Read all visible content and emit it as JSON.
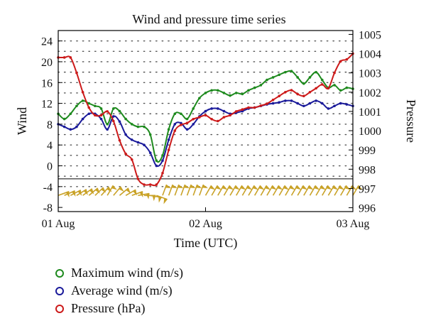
{
  "chart_data": {
    "type": "line",
    "title": "Wind and pressure time series",
    "xlabel": "Time (UTC)",
    "ylabel_left": "Wind",
    "ylabel_right": "Pressure",
    "x_ticks": [
      "01 Aug",
      "02 Aug",
      "03 Aug"
    ],
    "y_ticks_left": [
      "24",
      "20",
      "16",
      "12",
      "8",
      "4",
      "0",
      "-4",
      "-8"
    ],
    "y_ticks_right": [
      "1005",
      "1004",
      "1003",
      "1002",
      "1001",
      "1000",
      "999",
      "998",
      "997",
      "996"
    ],
    "xlim_hours": [
      0,
      48
    ],
    "ylim_left": [
      -8.8,
      26
    ],
    "ylim_right": [
      995.8,
      1005.2
    ],
    "grid": "dotted",
    "series": [
      {
        "name": "Maximum wind (m/s)",
        "axis": "left",
        "color": "#1e8a1e",
        "x_hours": [
          0,
          1,
          2,
          3,
          4,
          5,
          6,
          7,
          8,
          9,
          10,
          11,
          12,
          13,
          14,
          15,
          16,
          17,
          18,
          19,
          20,
          21,
          22,
          23,
          24,
          25,
          26,
          27,
          28,
          29,
          30,
          31,
          32,
          33,
          34,
          35,
          36,
          37,
          38,
          39,
          40,
          41,
          42,
          43,
          44,
          45,
          46,
          47,
          48
        ],
        "values": [
          10,
          9,
          10,
          11.5,
          12.5,
          12,
          11.5,
          11,
          8,
          11,
          10.5,
          9,
          8,
          7.5,
          7.5,
          6,
          1,
          2,
          7,
          10,
          10,
          9,
          11,
          13,
          14,
          14.5,
          14.5,
          14,
          13.5,
          14,
          13.8,
          14.5,
          15,
          15.5,
          16.5,
          17,
          17.5,
          18,
          18.2,
          17,
          15.8,
          17,
          18,
          16.5,
          15,
          15.5,
          14.5,
          15,
          14.8
        ]
      },
      {
        "name": "Average wind (m/s)",
        "axis": "left",
        "color": "#1a1a9a",
        "x_hours": [
          0,
          1,
          2,
          3,
          4,
          5,
          6,
          7,
          8,
          9,
          10,
          11,
          12,
          13,
          14,
          15,
          16,
          17,
          18,
          19,
          20,
          21,
          22,
          23,
          24,
          25,
          26,
          27,
          28,
          29,
          30,
          31,
          32,
          33,
          34,
          35,
          36,
          37,
          38,
          39,
          40,
          41,
          42,
          43,
          44,
          45,
          46,
          47,
          48
        ],
        "values": [
          8,
          7.5,
          7,
          7.5,
          9,
          10,
          10,
          9,
          7,
          9.5,
          8.5,
          6,
          5,
          4.5,
          4,
          2.5,
          0,
          1,
          5,
          8,
          8.2,
          7,
          8,
          9.5,
          10.5,
          11,
          11,
          10.5,
          10,
          10.2,
          10.5,
          11,
          11.2,
          11.5,
          11.8,
          12,
          12.2,
          12.5,
          12.5,
          12,
          11.5,
          12,
          12.5,
          12,
          11,
          11.5,
          12,
          11.8,
          11.5
        ]
      },
      {
        "name": "Pressure (hPa)",
        "axis": "right",
        "color": "#cc1a1a",
        "x_hours": [
          0,
          1,
          2,
          3,
          4,
          5,
          6,
          7,
          8,
          9,
          10,
          11,
          12,
          13,
          14,
          15,
          16,
          17,
          18,
          19,
          20,
          21,
          22,
          23,
          24,
          25,
          26,
          27,
          28,
          29,
          30,
          31,
          32,
          33,
          34,
          35,
          36,
          37,
          38,
          39,
          40,
          41,
          42,
          43,
          44,
          45,
          46,
          47,
          48
        ],
        "values": [
          1003.8,
          1003.8,
          1003.8,
          1003,
          1002,
          1001.2,
          1000.8,
          1000.8,
          1001,
          1000.5,
          999.5,
          998.8,
          998.5,
          997.5,
          997.2,
          997.2,
          997.2,
          997.8,
          999,
          1000,
          1000.3,
          1000.4,
          1000.6,
          1000.7,
          1000.8,
          1000.6,
          1000.5,
          1000.7,
          1000.8,
          1001,
          1001.1,
          1001.2,
          1001.2,
          1001.3,
          1001.4,
          1001.6,
          1001.8,
          1002,
          1002.1,
          1001.9,
          1001.8,
          1002,
          1002.2,
          1002.4,
          1002.2,
          1003,
          1003.6,
          1003.7,
          1004
        ]
      }
    ]
  },
  "legend": [
    {
      "label": "Maximum wind (m/s)",
      "color": "#1e8a1e"
    },
    {
      "label": "Average wind (m/s)",
      "color": "#1a1a9a"
    },
    {
      "label": "Pressure (hPa)",
      "color": "#cc1a1a"
    }
  ],
  "wind_barb_color": "#c9a227"
}
